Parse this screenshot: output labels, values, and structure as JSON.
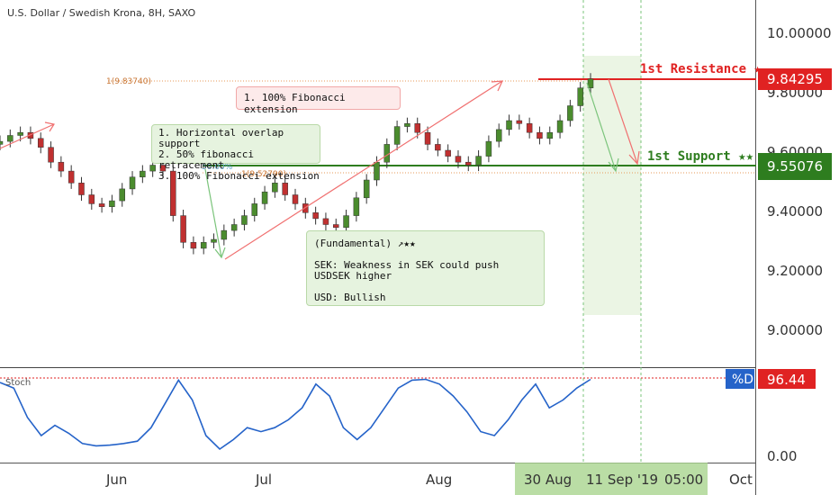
{
  "header": {
    "title": "U.S. Dollar / Swedish Krona, 8H, SAXO"
  },
  "price_axis": {
    "ticks": [
      "10.00000",
      "9.80000",
      "9.60000",
      "9.40000",
      "9.20000",
      "9.00000"
    ]
  },
  "stoch_axis": {
    "ticks": [
      "0.00"
    ]
  },
  "time_axis": {
    "labels": [
      "Jun",
      "Jul",
      "Aug",
      "Oct"
    ],
    "highlight": [
      "30 Aug",
      "11 Sep '19",
      "05:00"
    ]
  },
  "levels": {
    "resistance": {
      "label": "1st Resistance ★",
      "price": "9.84295",
      "color": "#e02222"
    },
    "support": {
      "label": "1st Support ★★",
      "price": "9.55076",
      "color": "#2e7d1f"
    }
  },
  "fib_labels": {
    "ext_top": "1(9.83740)",
    "ext_sup": "1(9.52790)",
    "retrace": "50.00%"
  },
  "notes": {
    "fib_ext": "1. 100% Fibonacci extension",
    "fib_support": [
      "1. Horizontal overlap support",
      "2. 50% fibonacci retracement",
      "3. 100% Fibonacci extension"
    ],
    "fundamental_title": "(Fundamental) ↗★★",
    "fundamental_sek": "SEK: Weakness in SEK could push USDSEK higher",
    "fundamental_usd": "USD: Bullish"
  },
  "stoch": {
    "name": "Stoch",
    "d_label": "%D",
    "value": "96.44"
  },
  "chart_data": {
    "type": "line",
    "title": "U.S. Dollar / Swedish Krona, 8H, SAXO",
    "xlabel": "",
    "ylabel": "",
    "y_ticks": [
      10.0,
      9.8,
      9.6,
      9.4,
      9.2,
      9.0
    ],
    "x_labels": [
      "Jun",
      "Jul",
      "Aug",
      "Oct"
    ],
    "series": [
      {
        "values": [
          9.63,
          9.65,
          9.66,
          9.64,
          9.61,
          9.56,
          9.53,
          9.49,
          9.45,
          9.42,
          9.41,
          9.43,
          9.47,
          9.51,
          9.53,
          9.55,
          9.53,
          9.38,
          9.29,
          9.27,
          9.29,
          9.3,
          9.33,
          9.35,
          9.38,
          9.42,
          9.46,
          9.49,
          9.45,
          9.42,
          9.39,
          9.37,
          9.35,
          9.34,
          9.38,
          9.44,
          9.5,
          9.56,
          9.62,
          9.68,
          9.69,
          9.66,
          9.62,
          9.6,
          9.58,
          9.56,
          9.55,
          9.58,
          9.63,
          9.67,
          9.7,
          9.69,
          9.66,
          9.64,
          9.66,
          9.7,
          9.75,
          9.81,
          9.84
        ]
      },
      {
        "name": "Stoch",
        "values": [
          92,
          85,
          48,
          25,
          38,
          28,
          15,
          12,
          13,
          15,
          18,
          35,
          65,
          95,
          70,
          25,
          8,
          20,
          35,
          30,
          35,
          45,
          60,
          90,
          75,
          35,
          20,
          35,
          60,
          85,
          95,
          96,
          90,
          75,
          55,
          30,
          25,
          45,
          70,
          90,
          60,
          70,
          85,
          96
        ]
      }
    ],
    "levels": {
      "resistance": 9.84295,
      "support": 9.55076,
      "fib_ext_top": 9.8374,
      "fib_ext_support": 9.5279
    },
    "stoch_d_last": 96.44
  }
}
